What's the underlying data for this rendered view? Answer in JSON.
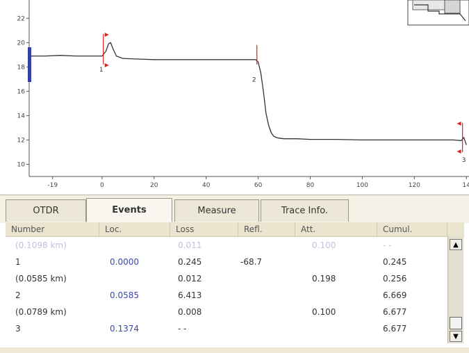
{
  "chart_data": {
    "type": "line",
    "y_ticks": [
      "10",
      "12",
      "14",
      "16",
      "18",
      "20",
      "22"
    ],
    "x_ticks": [
      "-19",
      "0",
      "20",
      "40",
      "60",
      "80",
      "100",
      "120",
      "14"
    ],
    "ylim": [
      9,
      23.5
    ],
    "xlim": [
      -28,
      141
    ],
    "series": [
      {
        "x": [
          -28,
          -22,
          -16,
          -10,
          -4,
          0,
          1.5,
          2.5,
          3.3,
          4.2,
          5.5,
          8,
          14,
          20,
          30,
          40,
          50,
          59,
          60,
          61,
          62,
          63,
          64,
          65,
          66,
          67,
          68,
          70,
          75,
          80,
          90,
          100,
          110,
          120,
          128,
          135,
          138,
          139,
          140
        ],
        "y": [
          18.9,
          18.9,
          18.95,
          18.9,
          18.9,
          18.9,
          19.3,
          19.9,
          20.0,
          19.5,
          18.9,
          18.7,
          18.65,
          18.6,
          18.6,
          18.6,
          18.6,
          18.6,
          18.4,
          17.5,
          16.0,
          14.2,
          13.2,
          12.6,
          12.3,
          12.2,
          12.15,
          12.1,
          12.1,
          12.05,
          12.05,
          12.0,
          12.0,
          12.0,
          12.0,
          12.0,
          11.95,
          12.2,
          11.6
        ]
      }
    ],
    "events": [
      {
        "label": "1",
        "x": 0.5
      },
      {
        "label": "2",
        "x": 59.5
      },
      {
        "label": "3",
        "x": 138.5
      }
    ],
    "grid": false
  },
  "tabs": [
    {
      "label": "OTDR",
      "active": false
    },
    {
      "label": "Events",
      "active": true
    },
    {
      "label": "Measure",
      "active": false
    },
    {
      "label": "Trace Info.",
      "active": false
    }
  ],
  "events_table": {
    "headers": [
      "Number",
      "Loc.",
      "Loss",
      "Refl.",
      "Att.",
      "Cumul."
    ],
    "rows": [
      {
        "faded": true,
        "number": "(0.1098 km)",
        "loc": "",
        "loss": "0.011",
        "refl": "",
        "att": "0.100",
        "cumul": "- -"
      },
      {
        "faded": false,
        "number": "1",
        "loc": "0.0000",
        "loss": "0.245",
        "refl": "-68.7",
        "att": "",
        "cumul": "0.245"
      },
      {
        "faded": false,
        "number": "(0.0585 km)",
        "loc": "",
        "loss": "0.012",
        "refl": "",
        "att": "0.198",
        "cumul": "0.256"
      },
      {
        "faded": false,
        "number": "2",
        "loc": "0.0585",
        "loss": "6.413",
        "refl": "",
        "att": "",
        "cumul": "6.669"
      },
      {
        "faded": false,
        "number": "(0.0789 km)",
        "loc": "",
        "loss": "0.008",
        "refl": "",
        "att": "0.100",
        "cumul": "6.677"
      },
      {
        "faded": false,
        "number": "3",
        "loc": "0.1374",
        "loss": "- -",
        "refl": "",
        "att": "",
        "cumul": "6.677"
      }
    ]
  },
  "scrollbar": {
    "up_icon": "arrow-up-icon",
    "down_icon": "arrow-down-icon"
  },
  "colors": {
    "trace": "#333333",
    "marker": "#e0201c",
    "loc_blue": "#3b48a8",
    "cursor_blue": "#3340a8"
  }
}
